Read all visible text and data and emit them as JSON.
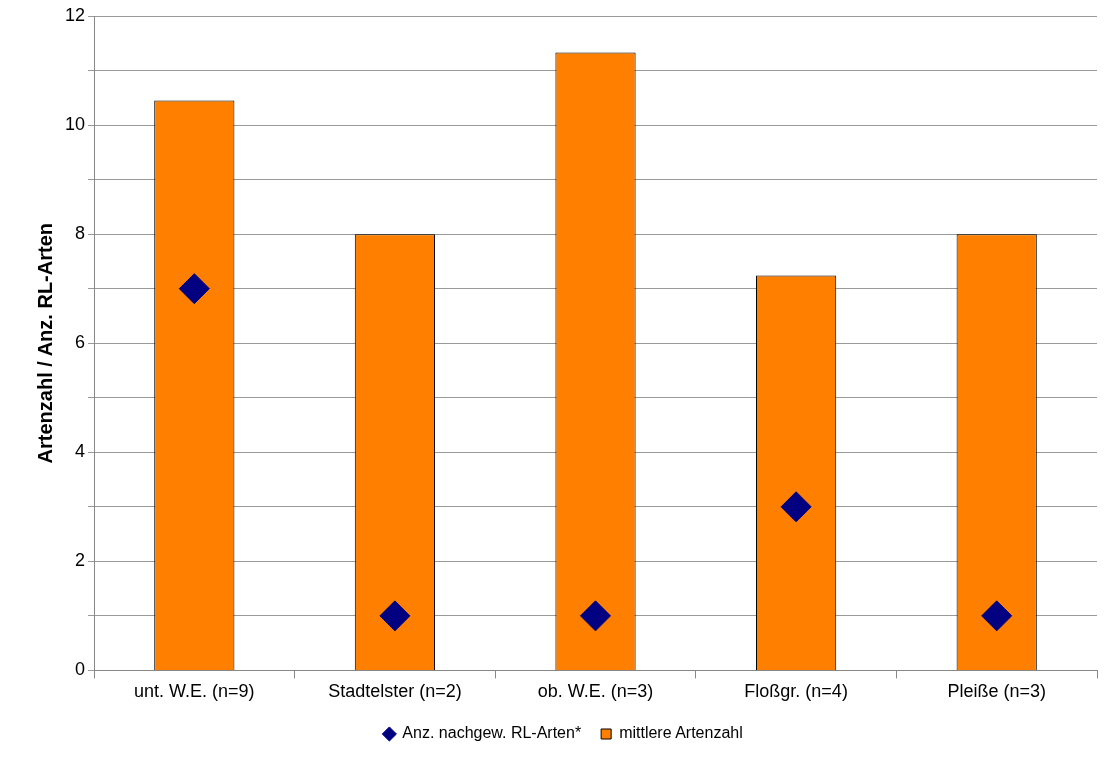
{
  "chart_data": {
    "type": "bar",
    "ylabel": "Artenzahl / Anz. RL-Arten",
    "categories": [
      "unt. W.E. (n=9)",
      "Stadtelster (n=2)",
      "ob. W.E. (n=3)",
      "Floßgr. (n=4)",
      "Pleiße (n=3)"
    ],
    "series": [
      {
        "name": "mittlere Artenzahl",
        "color": "#ff8000",
        "values": [
          10.45,
          8,
          11.33,
          7.24,
          8
        ]
      },
      {
        "name": "Anz. nachgew. RL-Arten*",
        "type": "scatter",
        "marker": "diamond",
        "color": "#000080",
        "x": [
          "unt. W.E. (n=9)",
          "Stadtelster (n=2)",
          "ob. W.E. (n=3)",
          "Floßgr. (n=4)",
          "Pleiße (n=3)"
        ],
        "values": [
          7,
          1,
          1,
          3,
          1
        ]
      }
    ],
    "ylim": [
      0,
      12
    ],
    "yticks": [
      0,
      {
        "value": 1,
        "label": null
      },
      2,
      {
        "value": 3,
        "label": null
      },
      4,
      {
        "value": 5,
        "label": null
      },
      6,
      {
        "value": 7,
        "label": null
      },
      8,
      {
        "value": 9,
        "label": null
      },
      10,
      {
        "value": 11,
        "label": null
      },
      12
    ],
    "grid": "y",
    "legend": "bottom"
  }
}
